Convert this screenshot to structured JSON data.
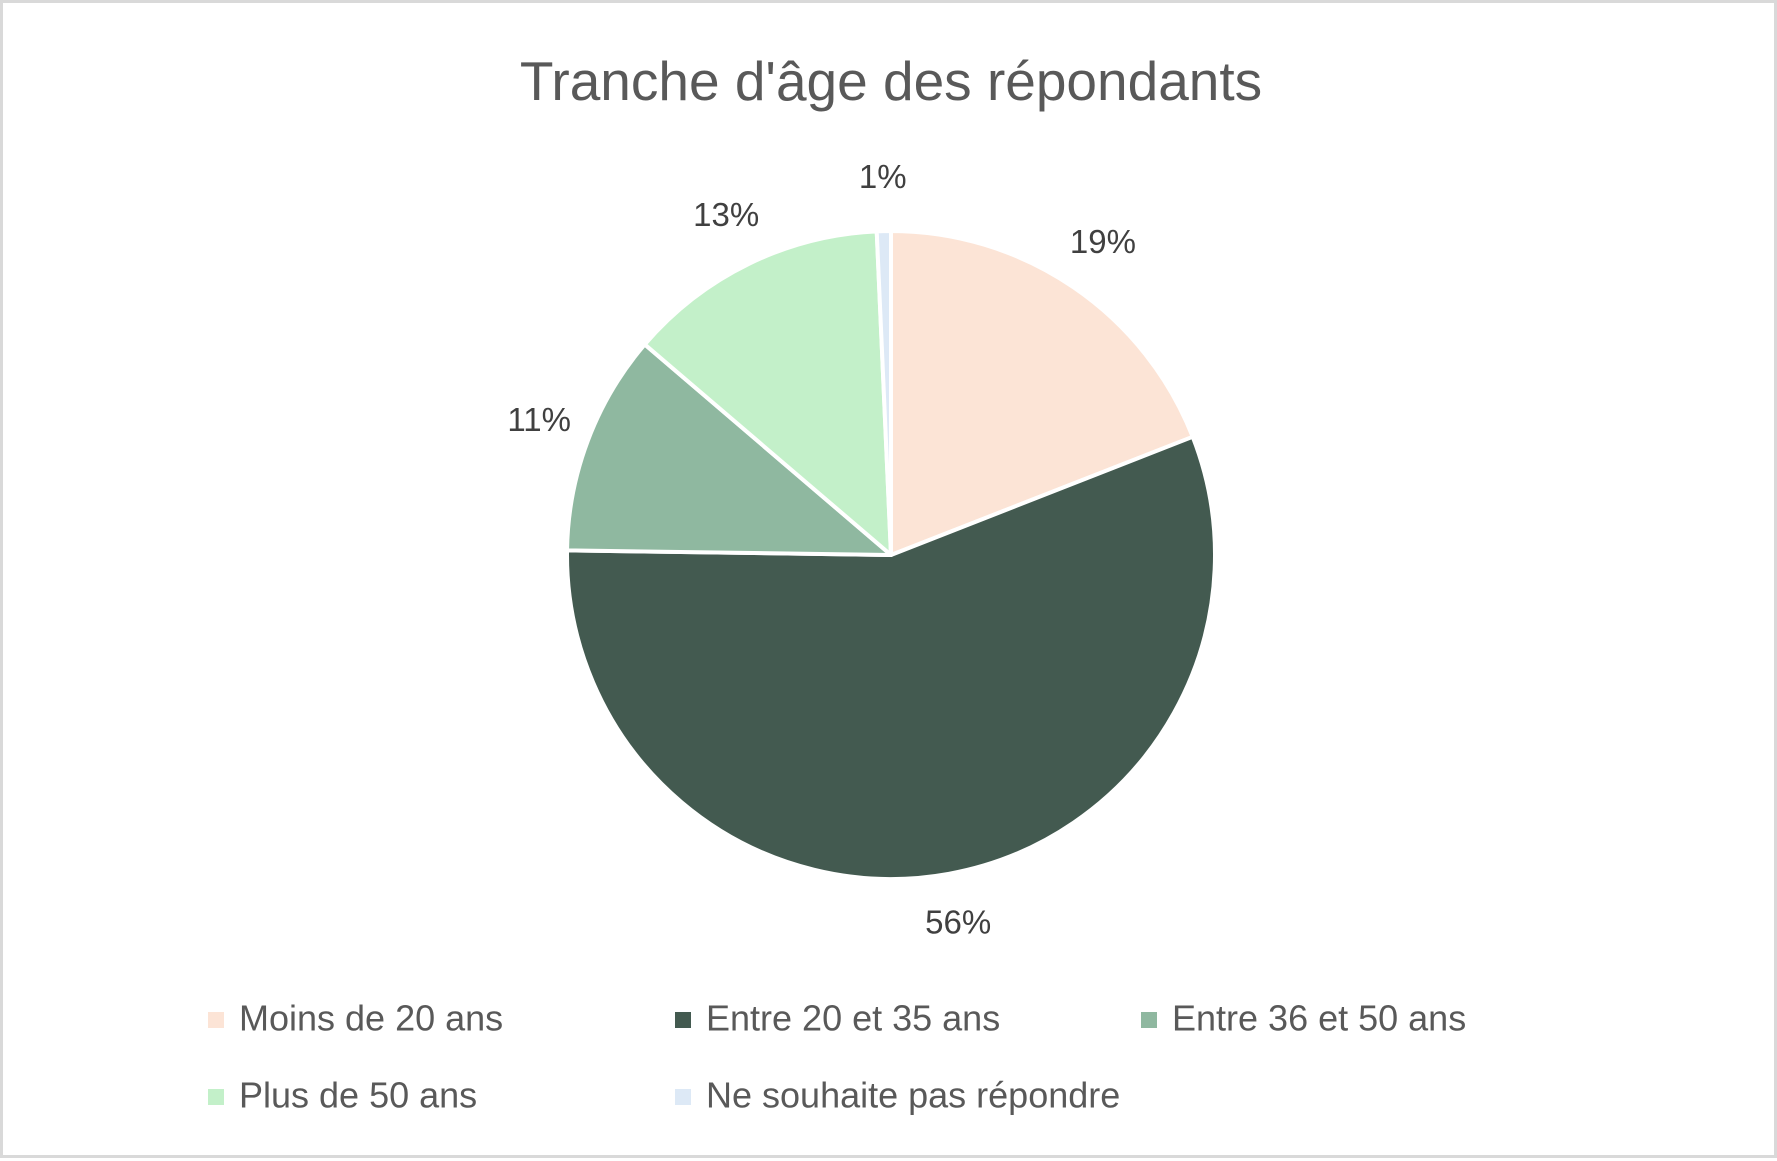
{
  "chart_data": {
    "type": "pie",
    "title": "Tranche d'âge des répondants",
    "slices": [
      {
        "label": "Moins de 20 ans",
        "value": 19,
        "value_label": "19%",
        "color": "#fce4d6"
      },
      {
        "label": "Entre 20 et 35 ans",
        "value": 56,
        "value_label": "56%",
        "color": "#435a50"
      },
      {
        "label": "Entre 36 et 50 ans",
        "value": 11,
        "value_label": "11%",
        "color": "#8fb8a0"
      },
      {
        "label": "Plus de 50 ans",
        "value": 13,
        "value_label": "13%",
        "color": "#c3f0c9"
      },
      {
        "label": "Ne souhaite pas répondre",
        "value": 0.7,
        "value_label": "1%",
        "color": "#dde9f6"
      }
    ],
    "legend_position": "bottom",
    "start_angle": "top, clockwise"
  }
}
